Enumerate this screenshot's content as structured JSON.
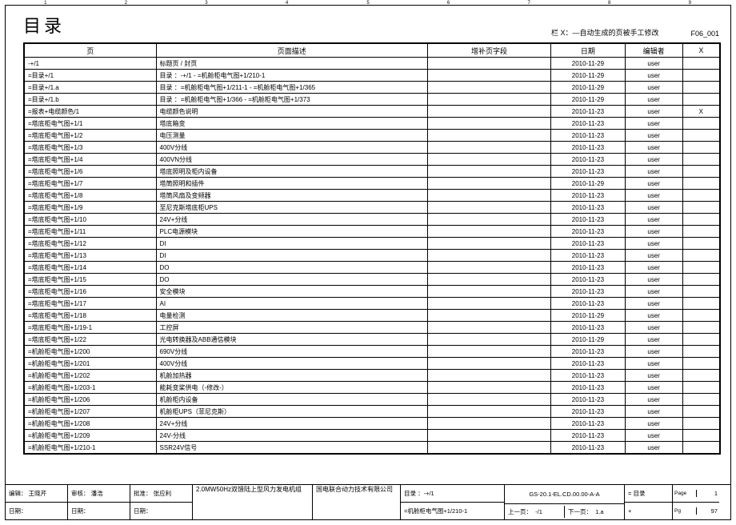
{
  "header": {
    "title": "目录",
    "note": "栏 X：—自动生成的页被手工修改",
    "code": "F06_001"
  },
  "columns": [
    "页",
    "页面描述",
    "增补页字段",
    "日期",
    "编辑者",
    "X"
  ],
  "rows": [
    {
      "p": "-+/1",
      "d": "标题页 / 封页",
      "s": "",
      "dt": "2010-11-29",
      "e": "user",
      "x": ""
    },
    {
      "p": "=目录+/1",
      "d": "目录 ：-+/1 - =机舱柜电气图+1/210-1",
      "s": "",
      "dt": "2010-11-29",
      "e": "user",
      "x": ""
    },
    {
      "p": "=目录+/1.a",
      "d": "目录 ：=机舱柜电气图+1/211-1 - =机舱柜电气图+1/365",
      "s": "",
      "dt": "2010-11-29",
      "e": "user",
      "x": ""
    },
    {
      "p": "=目录+/1.b",
      "d": "目录 ：=机舱柜电气图+1/366 - =机舱柜电气图+1/373",
      "s": "",
      "dt": "2010-11-29",
      "e": "user",
      "x": ""
    },
    {
      "p": "=报表+电缆颜色/1",
      "d": "电缆颜色说明",
      "s": "",
      "dt": "2010-11-23",
      "e": "user",
      "x": "X"
    },
    {
      "p": "=塔底柜电气图+1/1",
      "d": "塔底箱变",
      "s": "",
      "dt": "2010-11-23",
      "e": "user",
      "x": ""
    },
    {
      "p": "=塔底柜电气图+1/2",
      "d": "电压测量",
      "s": "",
      "dt": "2010-11-23",
      "e": "user",
      "x": ""
    },
    {
      "p": "=塔底柜电气图+1/3",
      "d": "400V分线",
      "s": "",
      "dt": "2010-11-23",
      "e": "user",
      "x": ""
    },
    {
      "p": "=塔底柜电气图+1/4",
      "d": "400VN分线",
      "s": "",
      "dt": "2010-11-23",
      "e": "user",
      "x": ""
    },
    {
      "p": "=塔底柜电气图+1/6",
      "d": "塔底照明及柜内设备",
      "s": "",
      "dt": "2010-11-23",
      "e": "user",
      "x": ""
    },
    {
      "p": "=塔底柜电气图+1/7",
      "d": "塔筒照明和插件",
      "s": "",
      "dt": "2010-11-29",
      "e": "user",
      "x": ""
    },
    {
      "p": "=塔底柜电气图+1/8",
      "d": "塔筒风扇及变频器",
      "s": "",
      "dt": "2010-11-23",
      "e": "user",
      "x": ""
    },
    {
      "p": "=塔底柜电气图+1/9",
      "d": "至尼克斯塔底柜UPS",
      "s": "",
      "dt": "2010-11-23",
      "e": "user",
      "x": ""
    },
    {
      "p": "=塔底柜电气图+1/10",
      "d": "24V+分线",
      "s": "",
      "dt": "2010-11-23",
      "e": "user",
      "x": ""
    },
    {
      "p": "=塔底柜电气图+1/11",
      "d": "PLC电源模块",
      "s": "",
      "dt": "2010-11-23",
      "e": "user",
      "x": ""
    },
    {
      "p": "=塔底柜电气图+1/12",
      "d": "DI",
      "s": "",
      "dt": "2010-11-23",
      "e": "user",
      "x": ""
    },
    {
      "p": "=塔底柜电气图+1/13",
      "d": "DI",
      "s": "",
      "dt": "2010-11-23",
      "e": "user",
      "x": ""
    },
    {
      "p": "=塔底柜电气图+1/14",
      "d": "DO",
      "s": "",
      "dt": "2010-11-23",
      "e": "user",
      "x": ""
    },
    {
      "p": "=塔底柜电气图+1/15",
      "d": "DO",
      "s": "",
      "dt": "2010-11-23",
      "e": "user",
      "x": ""
    },
    {
      "p": "=塔底柜电气图+1/16",
      "d": "安全模块",
      "s": "",
      "dt": "2010-11-23",
      "e": "user",
      "x": ""
    },
    {
      "p": "=塔底柜电气图+1/17",
      "d": "AI",
      "s": "",
      "dt": "2010-11-23",
      "e": "user",
      "x": ""
    },
    {
      "p": "=塔底柜电气图+1/18",
      "d": "电量检测",
      "s": "",
      "dt": "2010-11-29",
      "e": "user",
      "x": ""
    },
    {
      "p": "=塔底柜电气图+1/19-1",
      "d": "工控屏",
      "s": "",
      "dt": "2010-11-23",
      "e": "user",
      "x": ""
    },
    {
      "p": "=塔底柜电气图+1/22",
      "d": "光电转换器及ABB通信模块",
      "s": "",
      "dt": "2010-11-29",
      "e": "user",
      "x": ""
    },
    {
      "p": "=机舱柜电气图+1/200",
      "d": "690V分线",
      "s": "",
      "dt": "2010-11-23",
      "e": "user",
      "x": ""
    },
    {
      "p": "=机舱柜电气图+1/201",
      "d": "400V分线",
      "s": "",
      "dt": "2010-11-23",
      "e": "user",
      "x": ""
    },
    {
      "p": "=机舱柜电气图+1/202",
      "d": "机舱加热器",
      "s": "",
      "dt": "2010-11-23",
      "e": "user",
      "x": ""
    },
    {
      "p": "=机舱柜电气图+1/203-1",
      "d": "能耗变桨供电（-修改-）",
      "s": "",
      "dt": "2010-11-23",
      "e": "user",
      "x": ""
    },
    {
      "p": "=机舱柜电气图+1/206",
      "d": "机舱柜内设备",
      "s": "",
      "dt": "2010-11-23",
      "e": "user",
      "x": ""
    },
    {
      "p": "=机舱柜电气图+1/207",
      "d": "机舱柜UPS（菲尼克斯）",
      "s": "",
      "dt": "2010-11-23",
      "e": "user",
      "x": ""
    },
    {
      "p": "=机舱柜电气图+1/208",
      "d": "24V+分线",
      "s": "",
      "dt": "2010-11-23",
      "e": "user",
      "x": ""
    },
    {
      "p": "=机舱柜电气图+1/209",
      "d": "24V-分线",
      "s": "",
      "dt": "2010-11-23",
      "e": "user",
      "x": ""
    },
    {
      "p": "=机舱柜电气图+1/210-1",
      "d": "SSR24V信号",
      "s": "",
      "dt": "2010-11-23",
      "e": "user",
      "x": ""
    }
  ],
  "footer": {
    "editor_label": "编辑：",
    "editor_val": "王晓芹",
    "check_label": "审核：",
    "check_val": "潘浩",
    "approve_label": "批准：",
    "approve_val": "张应利",
    "date_label": "日期：",
    "date2_label": "日期：",
    "date3_label": "日期：",
    "product": "2.0MW50Hz双馈陆上型风力发电机组",
    "company": "国电联合动力技术有限公司",
    "dir_label": "目录 ：",
    "dir_val": "-+/1",
    "dir2": "=机舱柜电气图+1/210-1",
    "doc_no": "GS-20.1-EL.CD.00.00-A-A",
    "section": "= 目录",
    "plus": "+",
    "prev_label": "上一页：",
    "prev_val": "-/1",
    "next_label": "下一页：",
    "next_val": "1.a",
    "page_label": "Page",
    "page_val": "1",
    "pg_label": "Pg",
    "pg_val": "97"
  },
  "ruler": [
    "1",
    "2",
    "3",
    "4",
    "5",
    "6",
    "7",
    "8",
    "9"
  ]
}
